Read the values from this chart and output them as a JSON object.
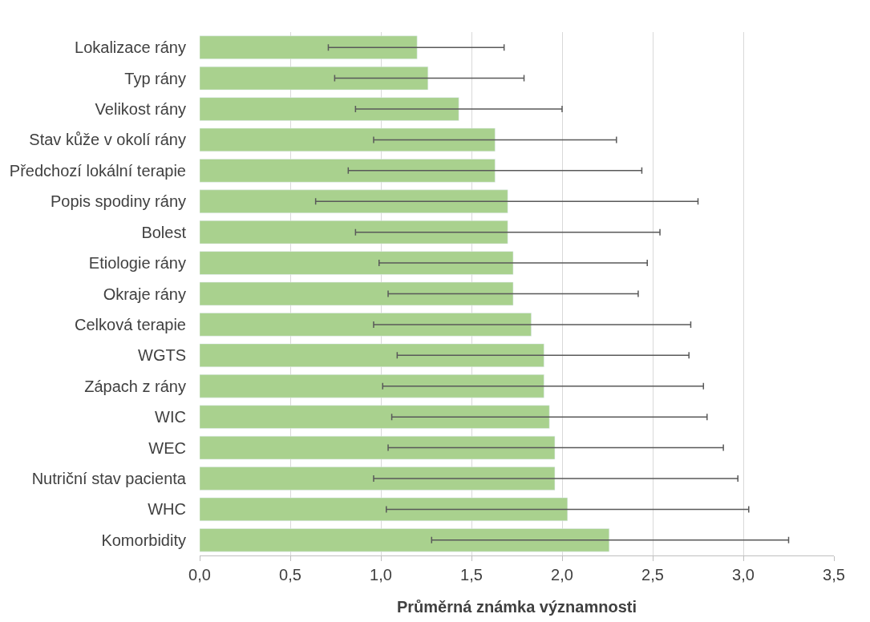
{
  "chart_data": {
    "type": "bar",
    "orientation": "horizontal",
    "xlabel": "Průměrná známka významnosti",
    "categories": [
      "Lokalizace rány",
      "Typ rány",
      "Velikost rány",
      "Stav kůže v okolí rány",
      "Předchozí lokální terapie",
      "Popis spodiny rány",
      "Bolest",
      "Etiologie rány",
      "Okraje rány",
      "Celková terapie",
      "WGTS",
      "Zápach z rány",
      "WIC",
      "WEC",
      "Nutriční stav pacienta",
      "WHC",
      "Komorbidity"
    ],
    "values": [
      1.2,
      1.26,
      1.43,
      1.63,
      1.63,
      1.7,
      1.7,
      1.73,
      1.73,
      1.83,
      1.9,
      1.9,
      1.93,
      1.96,
      1.96,
      2.03,
      2.26
    ],
    "errors": [
      [
        0.71,
        1.68
      ],
      [
        0.745,
        1.79
      ],
      [
        0.86,
        2.0
      ],
      [
        0.96,
        2.3
      ],
      [
        0.82,
        2.44
      ],
      [
        0.64,
        2.75
      ],
      [
        0.86,
        2.54
      ],
      [
        0.99,
        2.47
      ],
      [
        1.04,
        2.42
      ],
      [
        0.96,
        2.71
      ],
      [
        1.09,
        2.7
      ],
      [
        1.01,
        2.78
      ],
      [
        1.06,
        2.8
      ],
      [
        1.04,
        2.89
      ],
      [
        0.96,
        2.97
      ],
      [
        1.03,
        3.03
      ],
      [
        1.28,
        3.25
      ]
    ],
    "color": "#a9d18e",
    "xlim": [
      0,
      3.5
    ],
    "xticks": [
      {
        "value": 0,
        "label": "0,0"
      },
      {
        "value": 0.5,
        "label": "0,5"
      },
      {
        "value": 1,
        "label": "1,0"
      },
      {
        "value": 1.5,
        "label": "1,5"
      },
      {
        "value": 2,
        "label": "2,0"
      },
      {
        "value": 2.5,
        "label": "2,5"
      },
      {
        "value": 3,
        "label": "3,0"
      },
      {
        "value": 3.5,
        "label": "3,5"
      }
    ],
    "grid": "x"
  }
}
